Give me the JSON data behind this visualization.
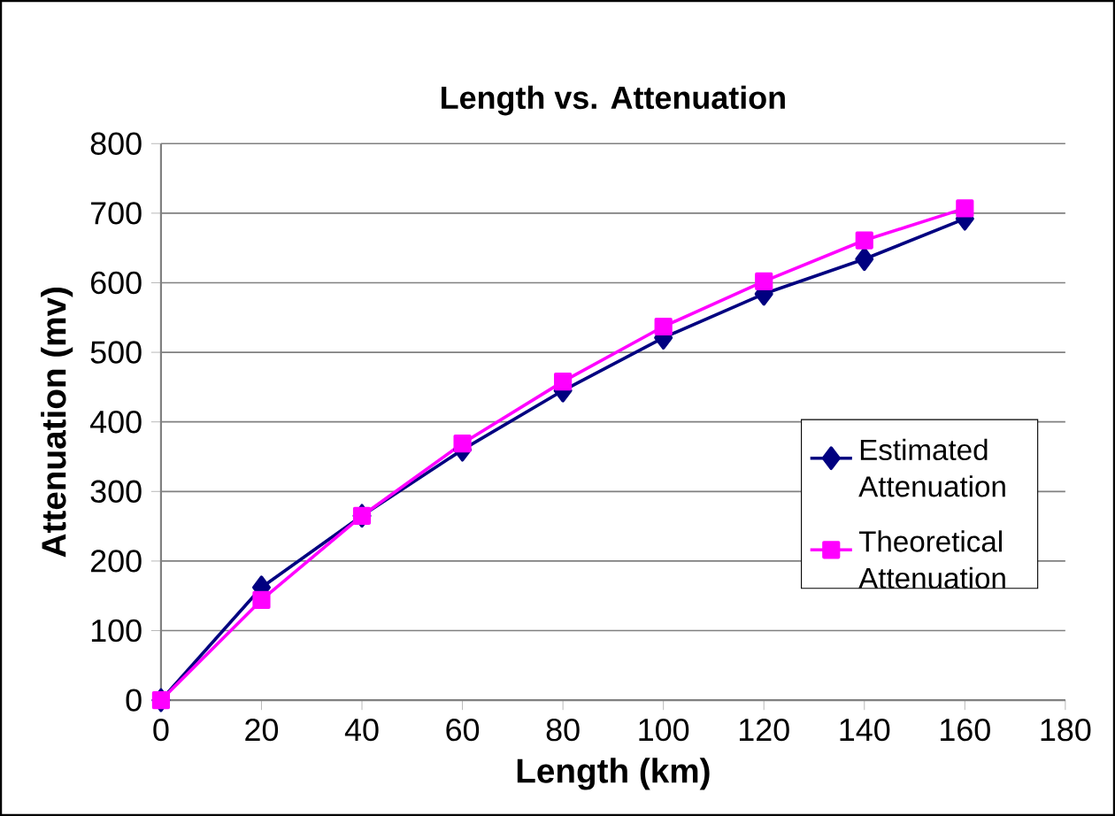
{
  "chart_data": {
    "type": "line",
    "title": "Length vs. Attenuation",
    "xlabel": "Length (km)",
    "ylabel": "Attenuation (mv)",
    "x": [
      0,
      20,
      40,
      60,
      80,
      100,
      120,
      140,
      160
    ],
    "series": [
      {
        "name": "Estimated Attenuation",
        "color": "#000080",
        "marker": "diamond",
        "values": [
          0,
          162,
          265,
          360,
          445,
          521,
          584,
          634,
          692
        ]
      },
      {
        "name": "Theoretical Attenuation",
        "color": "#ff00ff",
        "marker": "square",
        "values": [
          0,
          144,
          265,
          369,
          458,
          537,
          602,
          661,
          707
        ]
      }
    ],
    "xlim": [
      0,
      180
    ],
    "xticks": [
      0,
      20,
      40,
      60,
      80,
      100,
      120,
      140,
      160,
      180
    ],
    "ylim": [
      0,
      800
    ],
    "yticks": [
      0,
      100,
      200,
      300,
      400,
      500,
      600,
      700,
      800
    ],
    "grid": "y",
    "legend": "right"
  }
}
